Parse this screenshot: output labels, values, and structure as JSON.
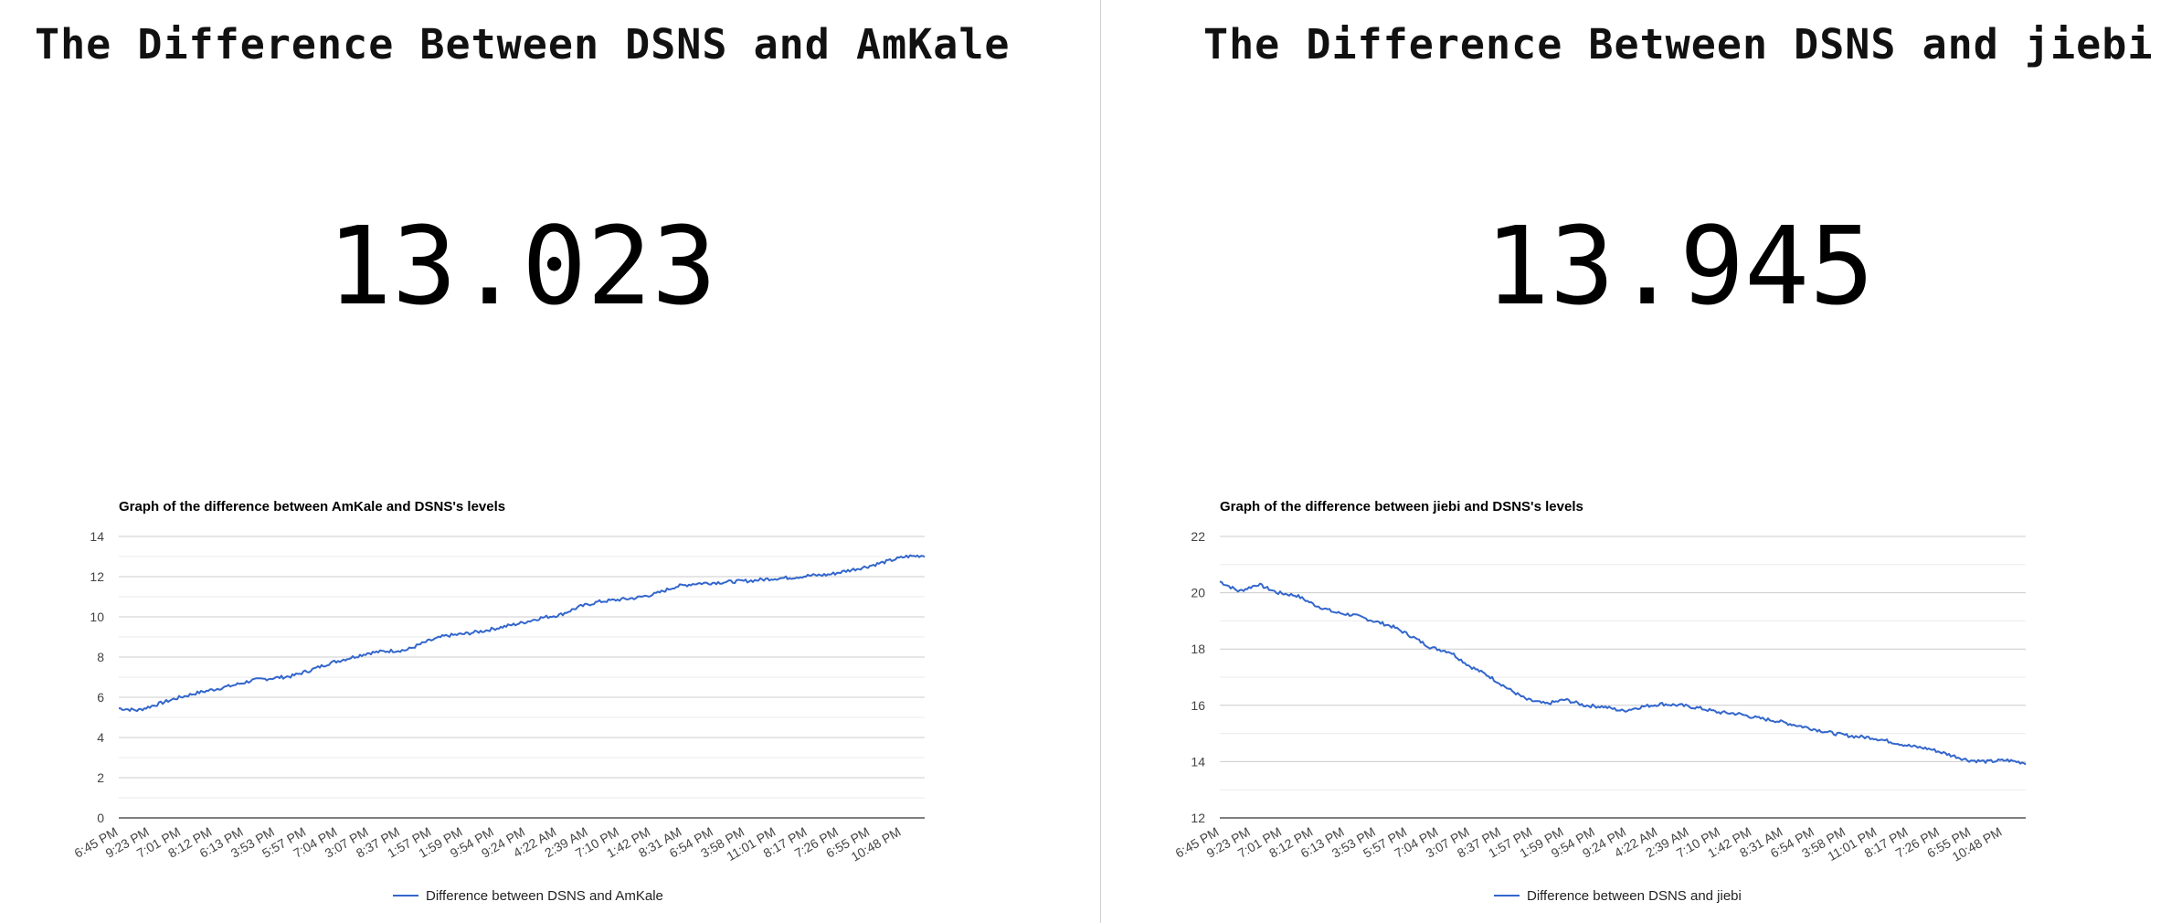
{
  "panels": [
    {
      "heading": "The Difference Between DSNS and AmKale",
      "current_value": "13.023"
    },
    {
      "heading": "The Difference Between DSNS and jiebi",
      "current_value": "13.945"
    }
  ],
  "chart_data": [
    {
      "type": "line",
      "title": "Graph of the difference between AmKale and DSNS's levels",
      "x_tick_labels": [
        "6:45 PM",
        "9:23 PM",
        "7:01 PM",
        "8:12 PM",
        "6:13 PM",
        "3:53 PM",
        "5:57 PM",
        "7:04 PM",
        "3:07 PM",
        "8:37 PM",
        "1:57 PM",
        "1:59 PM",
        "9:54 PM",
        "9:24 PM",
        "4:22 AM",
        "2:39 AM",
        "7:10 PM",
        "1:42 PM",
        "8:31 AM",
        "6:54 PM",
        "3:58 PM",
        "11:01 PM",
        "8:17 PM",
        "7:26 PM",
        "6:55 PM",
        "10:48 PM"
      ],
      "ylim": [
        0,
        14
      ],
      "y_ticks": [
        "0",
        "2",
        "4",
        "6",
        "8",
        "10",
        "12",
        "14"
      ],
      "grid": true,
      "legend_position": "bottom",
      "series": [
        {
          "name": "Difference between DSNS and AmKale",
          "color": "#3366cc",
          "values": [
            5.45,
            5.35,
            5.65,
            5.95,
            6.2,
            6.4,
            6.6,
            6.85,
            6.95,
            7.05,
            7.35,
            7.7,
            7.95,
            8.2,
            8.3,
            8.35,
            8.75,
            9.05,
            9.15,
            9.3,
            9.5,
            9.7,
            9.95,
            10.1,
            10.5,
            10.75,
            10.85,
            10.95,
            11.15,
            11.5,
            11.65,
            11.7,
            11.75,
            11.8,
            11.9,
            11.95,
            12.05,
            12.1,
            12.3,
            12.5,
            12.75,
            13.0,
            13.05
          ]
        }
      ]
    },
    {
      "type": "line",
      "title": "Graph of the difference between jiebi and DSNS's levels",
      "x_tick_labels": [
        "6:45 PM",
        "9:23 PM",
        "7:01 PM",
        "8:12 PM",
        "6:13 PM",
        "3:53 PM",
        "5:57 PM",
        "7:04 PM",
        "3:07 PM",
        "8:37 PM",
        "1:57 PM",
        "1:59 PM",
        "9:54 PM",
        "9:24 PM",
        "4:22 AM",
        "2:39 AM",
        "7:10 PM",
        "1:42 PM",
        "8:31 AM",
        "6:54 PM",
        "3:58 PM",
        "11:01 PM",
        "8:17 PM",
        "7:26 PM",
        "6:55 PM",
        "10:48 PM"
      ],
      "ylim": [
        12,
        22
      ],
      "y_ticks": [
        "12",
        "14",
        "16",
        "18",
        "20",
        "22"
      ],
      "grid": true,
      "legend_position": "bottom",
      "series": [
        {
          "name": "Difference between DSNS and jiebi",
          "color": "#3366cc",
          "values": [
            20.4,
            20.05,
            20.3,
            20.0,
            19.9,
            19.55,
            19.3,
            19.2,
            19.0,
            18.8,
            18.45,
            18.05,
            17.9,
            17.4,
            17.05,
            16.6,
            16.2,
            16.05,
            16.2,
            16.0,
            15.95,
            15.8,
            15.95,
            16.05,
            16.0,
            15.9,
            15.75,
            15.7,
            15.55,
            15.45,
            15.3,
            15.15,
            15.0,
            14.9,
            14.85,
            14.7,
            14.55,
            14.45,
            14.25,
            14.05,
            14.0,
            14.05,
            13.95
          ]
        }
      ]
    }
  ]
}
